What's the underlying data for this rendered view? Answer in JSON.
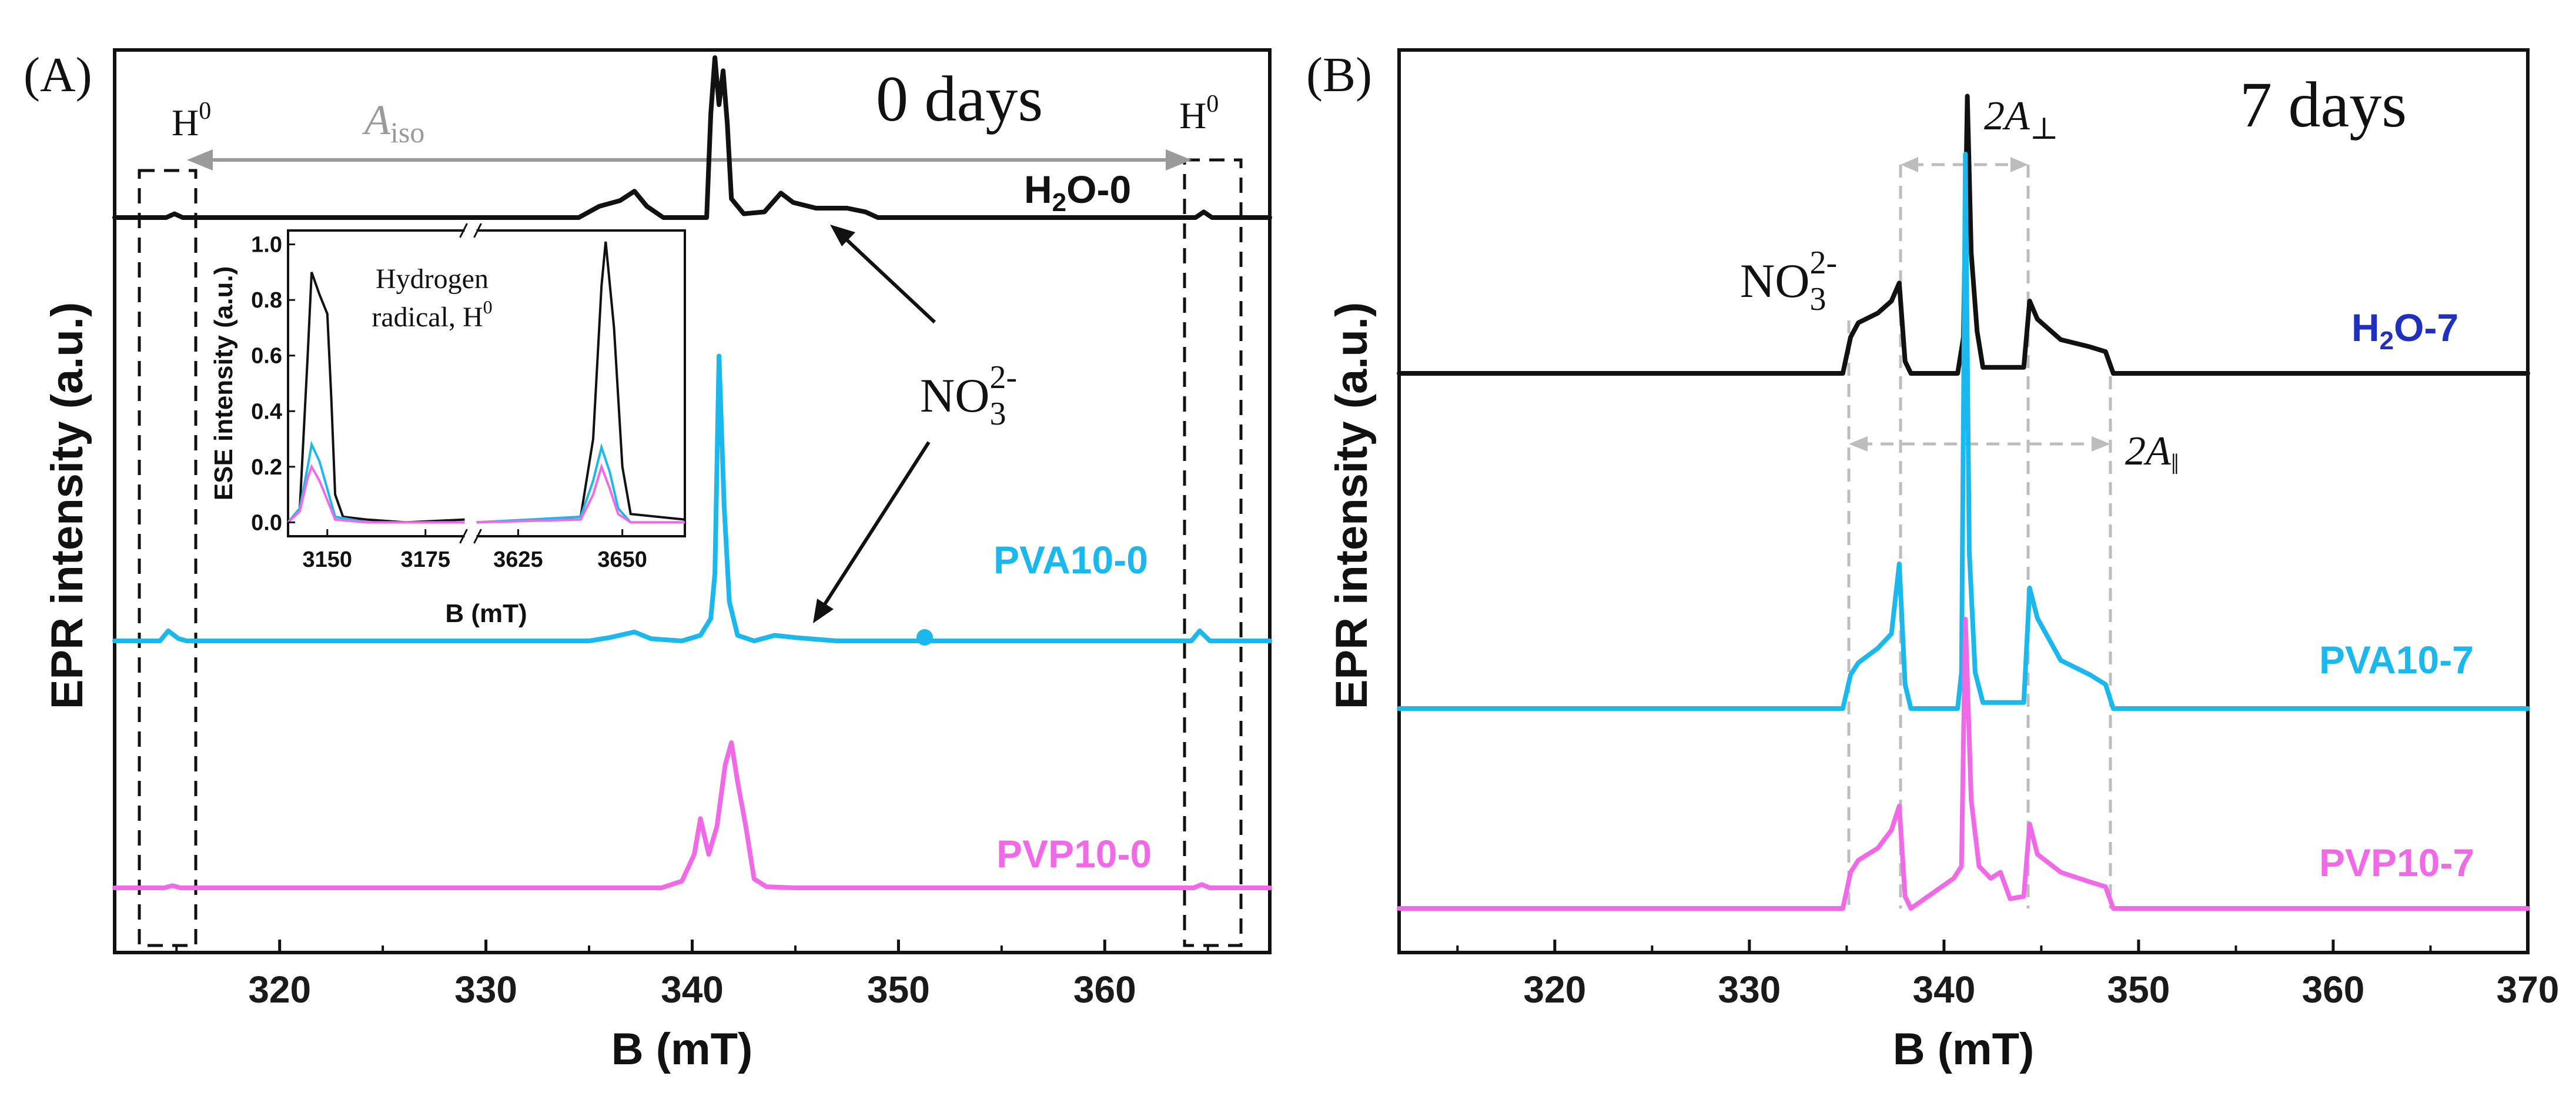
{
  "colors": {
    "black_series": "#111111",
    "cyan_series": "#1ab8ec",
    "magenta_series": "#f06ae8",
    "h2o7_label": "#1f2fc0",
    "aiso_gray": "#9a9a9a",
    "dash_gray": "#bdbdbd"
  },
  "chart_data": [
    {
      "type": "line",
      "panel": "A",
      "panel_label": "(A)",
      "days_label": "0 days",
      "xlabel": "B (mT)",
      "ylabel": "EPR intensity (a.u.)",
      "xlim": [
        312,
        368
      ],
      "xticks": [
        320,
        330,
        340,
        350,
        360
      ],
      "xtick_labels": [
        "320",
        "330",
        "340",
        "350",
        "360"
      ],
      "series": [
        {
          "name": "H₂O-0",
          "label_main": "H",
          "label_sub": "2",
          "label_rest": "O-0",
          "color": "#111111",
          "baseline": 0.0,
          "points": [
            [
              312,
              0
            ],
            [
              314.5,
              0
            ],
            [
              314.9,
              0.02
            ],
            [
              315.3,
              0
            ],
            [
              334.5,
              0
            ],
            [
              335.5,
              0.06
            ],
            [
              336.5,
              0.09
            ],
            [
              337.2,
              0.14
            ],
            [
              337.8,
              0.06
            ],
            [
              338.6,
              0
            ],
            [
              340.7,
              0
            ],
            [
              340.9,
              0.55
            ],
            [
              341.1,
              0.85
            ],
            [
              341.3,
              0.6
            ],
            [
              341.5,
              0.78
            ],
            [
              341.7,
              0.5
            ],
            [
              341.9,
              0.1
            ],
            [
              342.5,
              0.02
            ],
            [
              343.5,
              0.03
            ],
            [
              344.3,
              0.13
            ],
            [
              344.9,
              0.08
            ],
            [
              346,
              0.05
            ],
            [
              347.5,
              0.05
            ],
            [
              348.4,
              0.03
            ],
            [
              349,
              0
            ],
            [
              364.4,
              0
            ],
            [
              364.8,
              0.03
            ],
            [
              365.2,
              0
            ],
            [
              368,
              0
            ]
          ]
        },
        {
          "name": "PVA10-0",
          "label_main": "PVA10-0",
          "color": "#1ab8ec",
          "baseline": 0.0,
          "points": [
            [
              312,
              0
            ],
            [
              314.2,
              0
            ],
            [
              314.6,
              0.09
            ],
            [
              315.1,
              0.02
            ],
            [
              315.5,
              0
            ],
            [
              335,
              0
            ],
            [
              336,
              0.03
            ],
            [
              337.2,
              0.08
            ],
            [
              338,
              0.02
            ],
            [
              339.5,
              0
            ],
            [
              340.4,
              0.05
            ],
            [
              340.9,
              0.2
            ],
            [
              341.1,
              0.6
            ],
            [
              341.3,
              2.55
            ],
            [
              341.55,
              1.2
            ],
            [
              341.8,
              0.35
            ],
            [
              342.2,
              0.05
            ],
            [
              343,
              0
            ],
            [
              344,
              0.05
            ],
            [
              345,
              0.03
            ],
            [
              347,
              0
            ],
            [
              364.2,
              0
            ],
            [
              364.6,
              0.09
            ],
            [
              365.1,
              0
            ],
            [
              368,
              0
            ]
          ]
        },
        {
          "name": "PVP10-0",
          "label_main": "PVP10-0",
          "color": "#f06ae8",
          "baseline": 0.0,
          "points": [
            [
              312,
              0
            ],
            [
              314.4,
              0
            ],
            [
              314.8,
              0.02
            ],
            [
              315.2,
              0
            ],
            [
              338.5,
              0
            ],
            [
              339.5,
              0.06
            ],
            [
              340.1,
              0.3
            ],
            [
              340.4,
              0.62
            ],
            [
              340.8,
              0.3
            ],
            [
              341.2,
              0.55
            ],
            [
              341.6,
              1.1
            ],
            [
              341.9,
              1.3
            ],
            [
              342.2,
              0.95
            ],
            [
              342.6,
              0.55
            ],
            [
              343,
              0.08
            ],
            [
              343.6,
              0.01
            ],
            [
              345,
              0
            ],
            [
              364.3,
              0
            ],
            [
              364.7,
              0.03
            ],
            [
              365.1,
              0
            ],
            [
              368,
              0
            ]
          ]
        }
      ],
      "annotations": {
        "h0_left": "H",
        "h0_sup": "0",
        "h0_right": "H",
        "aiso_main": "A",
        "aiso_sub": "iso",
        "no3_main": "NO",
        "no3_sub": "3",
        "no3_sup": "2-"
      },
      "inset": {
        "title_line1": "Hydrogen",
        "title_line2_main": "radical, H",
        "title_line2_sup": "0",
        "xlabel": "B (mT)",
        "ylabel": "ESE intensity (a.u.)",
        "xtick_labels": [
          "3150",
          "3175",
          "3625",
          "3650"
        ],
        "yticks": [
          0.0,
          0.2,
          0.4,
          0.6,
          0.8,
          1.0
        ],
        "ytick_labels": [
          "0.0",
          "0.2",
          "0.4",
          "0.6",
          "0.8",
          "1.0"
        ],
        "ylim": [
          -0.05,
          1.05
        ],
        "left_xlim": [
          3140,
          3185
        ],
        "right_xlim": [
          3615,
          3665
        ],
        "series": [
          {
            "name": "H2O-0",
            "color": "#111111",
            "left": [
              [
                3140,
                0
              ],
              [
                3143,
                0.05
              ],
              [
                3145,
                0.6
              ],
              [
                3146,
                0.9
              ],
              [
                3148,
                0.82
              ],
              [
                3150,
                0.75
              ],
              [
                3151,
                0.45
              ],
              [
                3152,
                0.1
              ],
              [
                3154,
                0.02
              ],
              [
                3160,
                0.01
              ],
              [
                3170,
                0.0
              ],
              [
                3185,
                0.01
              ]
            ],
            "right": [
              [
                3615,
                0
              ],
              [
                3630,
                0.01
              ],
              [
                3640,
                0.02
              ],
              [
                3643,
                0.3
              ],
              [
                3645,
                0.85
              ],
              [
                3646,
                1.01
              ],
              [
                3648,
                0.7
              ],
              [
                3650,
                0.2
              ],
              [
                3652,
                0.03
              ],
              [
                3665,
                0.01
              ]
            ]
          },
          {
            "name": "PVA10-0",
            "color": "#1ab8ec",
            "left": [
              [
                3140,
                0
              ],
              [
                3143,
                0.05
              ],
              [
                3145,
                0.2
              ],
              [
                3146,
                0.28
              ],
              [
                3148,
                0.22
              ],
              [
                3150,
                0.12
              ],
              [
                3152,
                0.02
              ],
              [
                3160,
                0.0
              ],
              [
                3185,
                0.0
              ]
            ],
            "right": [
              [
                3615,
                0
              ],
              [
                3640,
                0.02
              ],
              [
                3643,
                0.15
              ],
              [
                3645,
                0.27
              ],
              [
                3647,
                0.18
              ],
              [
                3649,
                0.05
              ],
              [
                3652,
                0.0
              ],
              [
                3665,
                0.0
              ]
            ]
          },
          {
            "name": "PVP10-0",
            "color": "#f06ae8",
            "left": [
              [
                3140,
                0
              ],
              [
                3143,
                0.04
              ],
              [
                3145,
                0.16
              ],
              [
                3146,
                0.2
              ],
              [
                3148,
                0.15
              ],
              [
                3150,
                0.08
              ],
              [
                3152,
                0.01
              ],
              [
                3160,
                0.0
              ],
              [
                3185,
                0.0
              ]
            ],
            "right": [
              [
                3615,
                0
              ],
              [
                3640,
                0.01
              ],
              [
                3643,
                0.1
              ],
              [
                3645,
                0.2
              ],
              [
                3647,
                0.12
              ],
              [
                3649,
                0.03
              ],
              [
                3652,
                0.0
              ],
              [
                3665,
                0.0
              ]
            ]
          }
        ]
      }
    },
    {
      "type": "line",
      "panel": "B",
      "panel_label": "(B)",
      "days_label": "7 days",
      "xlabel": "B (mT)",
      "ylabel": "EPR intensity (a.u.)",
      "xlim": [
        312,
        370
      ],
      "xticks": [
        320,
        330,
        340,
        350,
        360,
        370
      ],
      "xtick_labels": [
        "320",
        "330",
        "340",
        "350",
        "360",
        "370"
      ],
      "series": [
        {
          "name": "H₂O-7",
          "label_main": "H",
          "label_sub": "2",
          "label_rest": "O-7",
          "color": "#1f2fc0",
          "line_color": "#111111",
          "points": [
            [
              312,
              0
            ],
            [
              334.8,
              0
            ],
            [
              335.2,
              0.3
            ],
            [
              335.6,
              0.42
            ],
            [
              336.6,
              0.5
            ],
            [
              337.3,
              0.6
            ],
            [
              337.7,
              0.75
            ],
            [
              338.0,
              0.1
            ],
            [
              338.3,
              0
            ],
            [
              340.7,
              0
            ],
            [
              341.0,
              0.3
            ],
            [
              341.2,
              2.3
            ],
            [
              341.4,
              1.0
            ],
            [
              341.7,
              0.35
            ],
            [
              342,
              0.05
            ],
            [
              344.1,
              0.05
            ],
            [
              344.4,
              0.6
            ],
            [
              344.8,
              0.45
            ],
            [
              346,
              0.28
            ],
            [
              347.5,
              0.22
            ],
            [
              348.3,
              0.18
            ],
            [
              348.7,
              0
            ],
            [
              370,
              0
            ]
          ]
        },
        {
          "name": "PVA10-7",
          "label_main": "PVA10-7",
          "color": "#1ab8ec",
          "points": [
            [
              312,
              0
            ],
            [
              334.8,
              0
            ],
            [
              335.2,
              0.28
            ],
            [
              335.6,
              0.38
            ],
            [
              336.6,
              0.5
            ],
            [
              337.3,
              0.62
            ],
            [
              337.7,
              1.2
            ],
            [
              338.0,
              0.2
            ],
            [
              338.3,
              0
            ],
            [
              340.7,
              0
            ],
            [
              340.9,
              0.3
            ],
            [
              341.1,
              4.6
            ],
            [
              341.3,
              1.3
            ],
            [
              341.6,
              0.3
            ],
            [
              342,
              0.05
            ],
            [
              344.1,
              0.05
            ],
            [
              344.4,
              1.0
            ],
            [
              344.8,
              0.75
            ],
            [
              346,
              0.4
            ],
            [
              347.5,
              0.28
            ],
            [
              348.3,
              0.2
            ],
            [
              348.7,
              0
            ],
            [
              370,
              0
            ]
          ]
        },
        {
          "name": "PVP10-7",
          "label_main": "PVP10-7",
          "color": "#f06ae8",
          "points": [
            [
              312,
              0
            ],
            [
              334.8,
              0
            ],
            [
              335.2,
              0.3
            ],
            [
              335.6,
              0.4
            ],
            [
              336.6,
              0.5
            ],
            [
              337.3,
              0.65
            ],
            [
              337.7,
              0.85
            ],
            [
              338.0,
              0.1
            ],
            [
              338.3,
              0
            ],
            [
              340.5,
              0.25
            ],
            [
              340.9,
              0.35
            ],
            [
              341.1,
              2.4
            ],
            [
              341.4,
              0.9
            ],
            [
              341.8,
              0.35
            ],
            [
              342.4,
              0.25
            ],
            [
              342.9,
              0.3
            ],
            [
              343.4,
              0.08
            ],
            [
              344.1,
              0.1
            ],
            [
              344.4,
              0.7
            ],
            [
              344.8,
              0.45
            ],
            [
              346,
              0.3
            ],
            [
              347.5,
              0.22
            ],
            [
              348.3,
              0.18
            ],
            [
              348.7,
              0
            ],
            [
              370,
              0
            ]
          ]
        }
      ],
      "annotations": {
        "no3_main": "NO",
        "no3_sub": "3",
        "no3_sup": "2-",
        "a_perp_main": "2A",
        "a_perp_sub": "⊥",
        "a_par_main": "2A",
        "a_par_sub": "‖"
      }
    }
  ]
}
